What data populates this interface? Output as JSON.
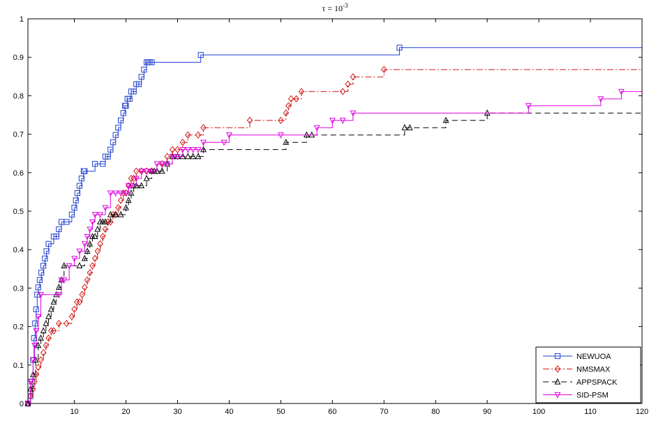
{
  "chart_data": {
    "type": "line",
    "title": "τ = 10",
    "title_exponent": "-3",
    "xlabel": "",
    "ylabel": "",
    "xlim": [
      1,
      120
    ],
    "ylim": [
      0,
      1
    ],
    "x_ticks": [
      10,
      20,
      30,
      40,
      50,
      60,
      70,
      80,
      90,
      100,
      110,
      120
    ],
    "y_ticks": [
      0,
      0.1,
      0.2,
      0.3,
      0.4,
      0.5,
      0.6,
      0.7,
      0.8,
      0.9,
      1
    ],
    "x_tick_labels": [
      "10",
      "20",
      "30",
      "40",
      "50",
      "60",
      "70",
      "80",
      "90",
      "100",
      "110",
      "120"
    ],
    "y_tick_labels": [
      "0",
      "0.1",
      "0.2",
      "0.3",
      "0.4",
      "0.5",
      "0.6",
      "0.7",
      "0.8",
      "0.9",
      "1"
    ],
    "grid": false,
    "legend_position": "bottom-right",
    "series": [
      {
        "name": "NEWUOA",
        "color": "#1f3fd0",
        "dash": "",
        "marker": "square",
        "x": [
          1,
          1.5,
          1.8,
          2,
          2.2,
          2.4,
          2.6,
          2.8,
          3,
          3.3,
          3.6,
          4,
          4.3,
          4.6,
          5,
          6,
          6.5,
          7,
          7.5,
          8.5,
          9.5,
          10,
          10.3,
          10.6,
          11,
          11.4,
          11.8,
          12,
          14,
          15.5,
          16,
          16.5,
          17,
          17.5,
          18,
          18.5,
          19,
          19.5,
          19.8,
          20,
          20.3,
          20.7,
          21,
          21.5,
          22,
          22.5,
          23,
          23.5,
          24,
          24.3,
          24.6,
          25,
          34.5,
          73,
          120
        ],
        "y": [
          0,
          0.019,
          0.057,
          0.113,
          0.17,
          0.208,
          0.245,
          0.283,
          0.302,
          0.321,
          0.34,
          0.358,
          0.377,
          0.396,
          0.415,
          0.434,
          0.434,
          0.453,
          0.472,
          0.472,
          0.491,
          0.509,
          0.528,
          0.547,
          0.566,
          0.585,
          0.604,
          0.604,
          0.623,
          0.623,
          0.642,
          0.642,
          0.66,
          0.679,
          0.698,
          0.717,
          0.736,
          0.755,
          0.774,
          0.774,
          0.792,
          0.792,
          0.811,
          0.811,
          0.83,
          0.83,
          0.849,
          0.868,
          0.887,
          0.887,
          0.887,
          0.887,
          0.906,
          0.925,
          0.925
        ]
      },
      {
        "name": "NMSMAX",
        "color": "#d01818",
        "dash": "9,3,2,3",
        "marker": "diamond",
        "x": [
          1,
          1.5,
          2,
          2.3,
          2.6,
          3,
          3.5,
          4,
          4.5,
          5,
          5.5,
          6,
          7,
          8.5,
          9.5,
          10,
          10.5,
          11,
          11.5,
          12,
          12.5,
          13,
          13.5,
          14,
          14.5,
          15,
          15.5,
          16,
          16.5,
          17,
          17.5,
          18,
          18.5,
          19,
          19.5,
          20,
          20.5,
          21,
          21.5,
          22,
          23,
          24,
          25,
          27,
          28,
          29,
          30,
          31,
          32,
          34,
          35,
          44,
          50,
          51,
          51.5,
          52,
          53,
          54,
          62,
          63,
          64,
          70,
          120
        ],
        "y": [
          0,
          0.019,
          0.038,
          0.057,
          0.075,
          0.094,
          0.113,
          0.132,
          0.151,
          0.17,
          0.189,
          0.189,
          0.208,
          0.208,
          0.226,
          0.245,
          0.264,
          0.264,
          0.283,
          0.302,
          0.321,
          0.34,
          0.358,
          0.377,
          0.396,
          0.415,
          0.434,
          0.453,
          0.472,
          0.472,
          0.491,
          0.491,
          0.509,
          0.528,
          0.547,
          0.547,
          0.566,
          0.585,
          0.585,
          0.604,
          0.604,
          0.604,
          0.604,
          0.623,
          0.642,
          0.66,
          0.66,
          0.679,
          0.698,
          0.698,
          0.717,
          0.736,
          0.736,
          0.755,
          0.774,
          0.792,
          0.792,
          0.811,
          0.811,
          0.83,
          0.849,
          0.868,
          0.868
        ]
      },
      {
        "name": "APPSPACK",
        "color": "#000000",
        "dash": "8,5",
        "marker": "triangle-up",
        "x": [
          1,
          1.5,
          2,
          2.5,
          3,
          3.5,
          4,
          4.5,
          5,
          5.5,
          6,
          6.5,
          7,
          7.5,
          8,
          11,
          12,
          12.5,
          13,
          13.5,
          14,
          14.5,
          15,
          15.5,
          16,
          17,
          18,
          19,
          20,
          20.5,
          21,
          21.5,
          22,
          23,
          24,
          25,
          25.5,
          26,
          27,
          28,
          29,
          30,
          31,
          32,
          33,
          34,
          35,
          51,
          55,
          56,
          74,
          75,
          82,
          90,
          120
        ],
        "y": [
          0,
          0.038,
          0.075,
          0.113,
          0.151,
          0.17,
          0.189,
          0.208,
          0.226,
          0.245,
          0.264,
          0.283,
          0.302,
          0.321,
          0.358,
          0.358,
          0.377,
          0.396,
          0.415,
          0.434,
          0.434,
          0.453,
          0.472,
          0.472,
          0.472,
          0.491,
          0.491,
          0.491,
          0.509,
          0.528,
          0.547,
          0.566,
          0.566,
          0.566,
          0.585,
          0.604,
          0.604,
          0.604,
          0.604,
          0.623,
          0.642,
          0.642,
          0.642,
          0.642,
          0.642,
          0.642,
          0.66,
          0.679,
          0.698,
          0.698,
          0.717,
          0.717,
          0.736,
          0.755,
          0.755
        ]
      },
      {
        "name": "SID-PSM",
        "color": "#e000e0",
        "dash": "",
        "marker": "triangle-down",
        "x": [
          1,
          1.5,
          2,
          2.3,
          2.6,
          3,
          3.5,
          7,
          7.5,
          8,
          9,
          10,
          11,
          12,
          12.5,
          13,
          13.5,
          14,
          15,
          16,
          17,
          18,
          19,
          20,
          20.5,
          21,
          22,
          23,
          24,
          25,
          26,
          27,
          28,
          29,
          30,
          31,
          32,
          33,
          34,
          35,
          39,
          40,
          50,
          57,
          60,
          62,
          64,
          98,
          112,
          116,
          120
        ],
        "y": [
          0,
          0.057,
          0.113,
          0.151,
          0.189,
          0.226,
          0.283,
          0.283,
          0.321,
          0.321,
          0.358,
          0.377,
          0.396,
          0.415,
          0.434,
          0.453,
          0.472,
          0.491,
          0.491,
          0.509,
          0.547,
          0.547,
          0.547,
          0.547,
          0.566,
          0.566,
          0.585,
          0.604,
          0.604,
          0.604,
          0.623,
          0.623,
          0.623,
          0.642,
          0.642,
          0.66,
          0.66,
          0.66,
          0.66,
          0.679,
          0.679,
          0.698,
          0.698,
          0.717,
          0.736,
          0.736,
          0.755,
          0.774,
          0.792,
          0.811,
          0.811
        ]
      }
    ]
  }
}
